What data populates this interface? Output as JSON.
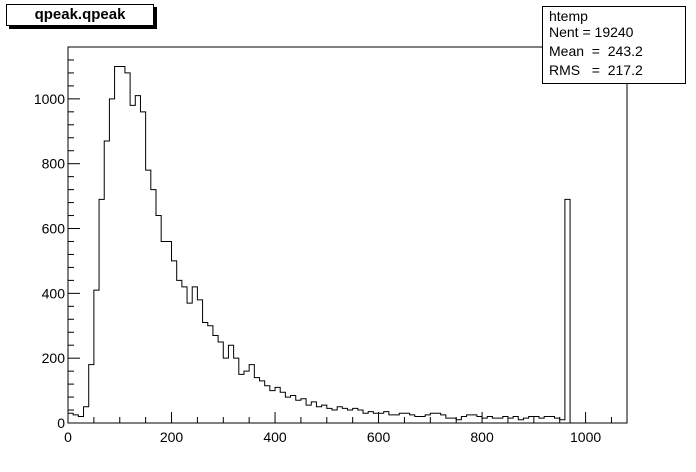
{
  "title": "qpeak.qpeak",
  "stats": {
    "name": "htemp",
    "rows": [
      "Nent = 19240",
      "Mean  =  243.2",
      "RMS   =  217.2"
    ]
  },
  "chart_data": {
    "type": "bar",
    "title": "qpeak.qpeak",
    "xlabel": "",
    "ylabel": "",
    "xlim": [
      0,
      1080
    ],
    "ylim": [
      0,
      1160
    ],
    "bin_width": 10,
    "bin_starts": [
      0,
      10,
      20,
      30,
      40,
      50,
      60,
      70,
      80,
      90,
      100,
      110,
      120,
      130,
      140,
      150,
      160,
      170,
      180,
      190,
      200,
      210,
      220,
      230,
      240,
      250,
      260,
      270,
      280,
      290,
      300,
      310,
      320,
      330,
      340,
      350,
      360,
      370,
      380,
      390,
      400,
      410,
      420,
      430,
      440,
      450,
      460,
      470,
      480,
      490,
      500,
      510,
      520,
      530,
      540,
      550,
      560,
      570,
      580,
      590,
      600,
      610,
      620,
      630,
      640,
      650,
      660,
      670,
      680,
      690,
      700,
      710,
      720,
      730,
      740,
      750,
      760,
      770,
      780,
      790,
      800,
      810,
      820,
      830,
      840,
      850,
      860,
      870,
      880,
      890,
      900,
      910,
      920,
      930,
      940,
      950,
      960,
      970,
      980,
      990,
      1000
    ],
    "values": [
      30,
      25,
      20,
      50,
      180,
      410,
      690,
      870,
      1000,
      1100,
      1100,
      1080,
      980,
      1010,
      960,
      780,
      720,
      640,
      560,
      560,
      500,
      440,
      420,
      370,
      420,
      380,
      310,
      300,
      270,
      250,
      200,
      240,
      200,
      150,
      160,
      180,
      140,
      130,
      115,
      100,
      110,
      95,
      80,
      85,
      70,
      75,
      55,
      65,
      50,
      55,
      45,
      40,
      50,
      45,
      40,
      45,
      40,
      30,
      35,
      30,
      30,
      35,
      25,
      25,
      30,
      30,
      25,
      20,
      20,
      25,
      30,
      30,
      25,
      15,
      15,
      10,
      20,
      25,
      25,
      20,
      15,
      20,
      15,
      15,
      20,
      15,
      20,
      10,
      15,
      20,
      20,
      15,
      20,
      20,
      15,
      10,
      690,
      0,
      0,
      0,
      0
    ],
    "x_ticks": [
      0,
      200,
      400,
      600,
      800,
      1000
    ],
    "x_tick_labels": [
      "0",
      "200",
      "400",
      "600",
      "800",
      "1000"
    ],
    "y_ticks": [
      0,
      200,
      400,
      600,
      800,
      1000
    ],
    "y_tick_labels": [
      "0",
      "200",
      "400",
      "600",
      "800",
      "1000"
    ],
    "grid": false,
    "legend": "none"
  }
}
